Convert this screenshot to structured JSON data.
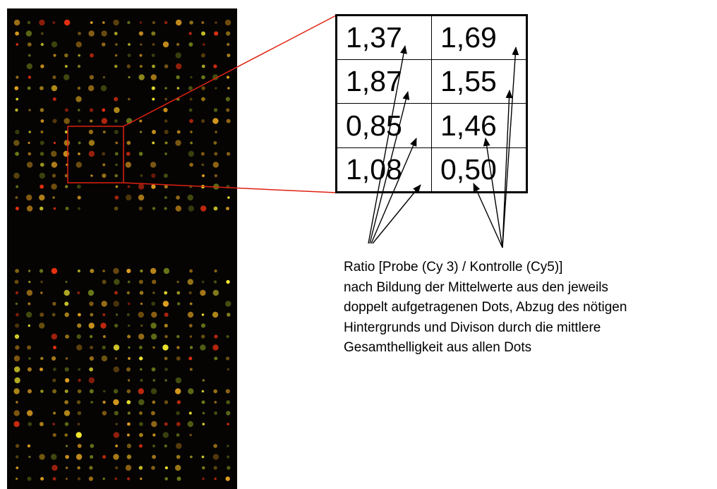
{
  "table": {
    "rows": [
      [
        "1,37",
        "1,69"
      ],
      [
        "1,87",
        "1,55"
      ],
      [
        "0,85",
        "1,46"
      ],
      [
        "1,08",
        "0,50"
      ]
    ]
  },
  "caption": {
    "lines": [
      "Ratio [Probe (Cy 3) / Kontrolle (Cy5)]",
      "nach Bildung der Mittelwerte aus den jeweils",
      "doppelt aufgetragenen Dots, Abzug des nötigen",
      "Hintergrunds und Divison durch die mittlere",
      "Gesamthelligkeit aus allen Dots"
    ]
  },
  "colors": {
    "zoom_lines": "#e02010",
    "array_background": "#050403",
    "dot_yellow": "#f2e830",
    "dot_orange": "#e0a020",
    "dot_red": "#e83010",
    "dot_green": "#6a7a18"
  },
  "icons": [
    "microarray-image",
    "arrow-icon"
  ]
}
